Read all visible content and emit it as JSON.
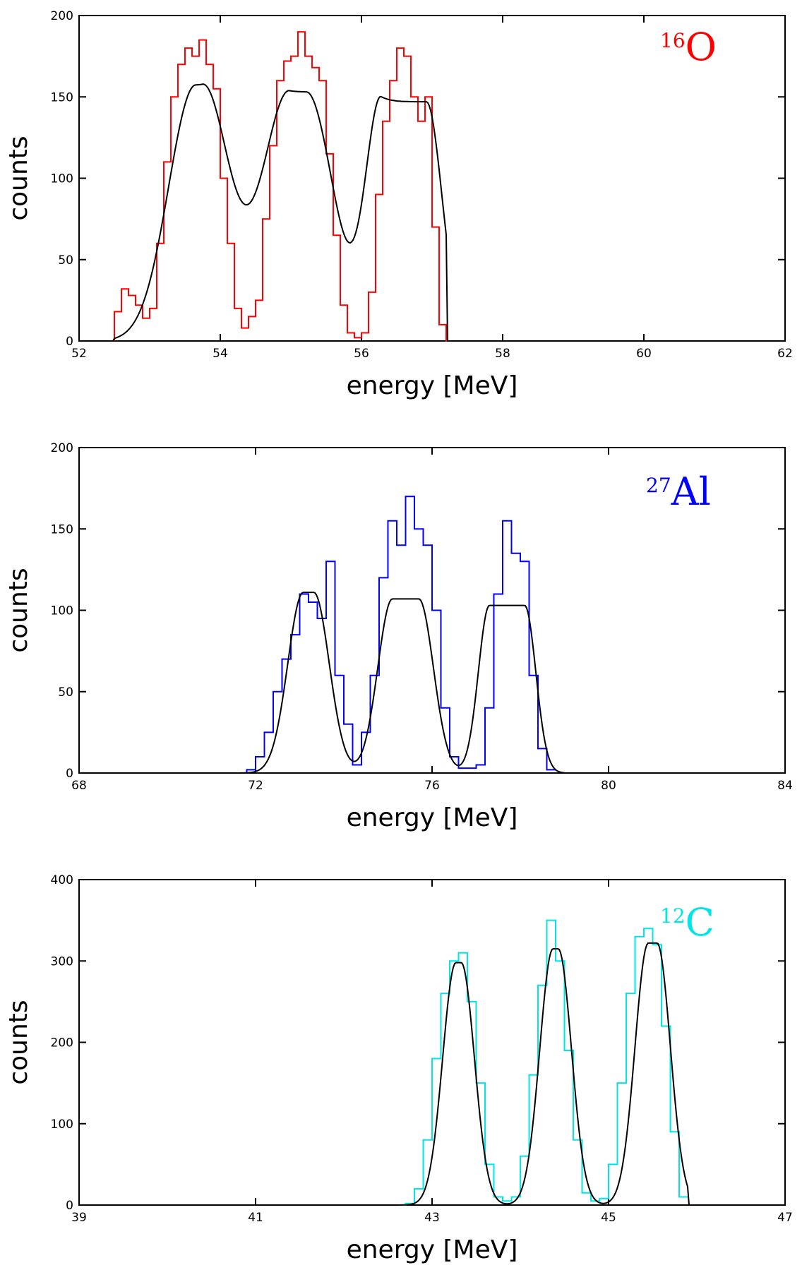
{
  "chart_data": [
    {
      "type": "line",
      "xlabel": "energy [MeV]",
      "ylabel": "counts",
      "xlim": [
        52,
        62
      ],
      "ylim": [
        0,
        200
      ],
      "xticks": [
        52,
        54,
        56,
        58,
        60,
        62
      ],
      "yticks": [
        0,
        50,
        100,
        150,
        200
      ],
      "annotation": {
        "mass_number": "16",
        "element": "O",
        "color": "#ff0000"
      },
      "data_color": "#ff0000",
      "fit_color": "#000000",
      "fit": {
        "floor_start": 52.5,
        "floor_end": 57.2,
        "peaks": [
          {
            "center": 53.7,
            "height": 157,
            "sigma": 0.38,
            "half_flat": 0.05
          },
          {
            "center": 55.1,
            "height": 153,
            "sigma": 0.38,
            "half_flat": 0.12
          },
          {
            "center": 56.6,
            "height": 147,
            "sigma": 0.22,
            "half_flat": 0.32
          }
        ]
      },
      "series": [
        {
          "x": [
            52.5,
            52.6,
            52.7,
            52.8,
            52.9,
            53.0,
            53.1,
            53.2,
            53.3,
            53.4,
            53.5,
            53.6,
            53.7,
            53.8,
            53.9,
            54.0,
            54.1,
            54.2,
            54.3,
            54.4,
            54.5,
            54.6,
            54.7,
            54.8,
            54.9,
            55.0,
            55.1,
            55.2,
            55.3,
            55.4,
            55.5,
            55.6,
            55.7,
            55.8,
            55.9,
            56.0,
            56.1,
            56.2,
            56.3,
            56.4,
            56.5,
            56.6,
            56.7,
            56.8,
            56.9,
            57.0,
            57.1,
            57.2
          ],
          "values": [
            18,
            32,
            28,
            22,
            14,
            20,
            60,
            110,
            150,
            170,
            180,
            175,
            185,
            170,
            155,
            100,
            60,
            20,
            8,
            15,
            25,
            75,
            120,
            160,
            172,
            175,
            190,
            175,
            168,
            160,
            115,
            65,
            22,
            5,
            2,
            5,
            30,
            90,
            135,
            160,
            180,
            175,
            150,
            135,
            150,
            70,
            10,
            0
          ]
        }
      ]
    },
    {
      "type": "line",
      "xlabel": "energy [MeV]",
      "ylabel": "counts",
      "xlim": [
        68,
        84
      ],
      "ylim": [
        0,
        200
      ],
      "xticks": [
        68,
        72,
        76,
        80,
        84
      ],
      "yticks": [
        0,
        50,
        100,
        150,
        200
      ],
      "annotation": {
        "mass_number": "27",
        "element": "Al",
        "color": "#0000ff"
      },
      "data_color": "#0000ff",
      "fit_color": "#000000",
      "fit": {
        "floor_start": 71.5,
        "floor_end": 79.0,
        "peaks": [
          {
            "center": 73.2,
            "height": 111,
            "sigma": 0.35,
            "half_flat": 0.12
          },
          {
            "center": 75.4,
            "height": 107,
            "sigma": 0.33,
            "half_flat": 0.3
          },
          {
            "center": 77.7,
            "height": 103,
            "sigma": 0.25,
            "half_flat": 0.4
          }
        ]
      },
      "series": [
        {
          "x": [
            71.8,
            72.0,
            72.2,
            72.4,
            72.6,
            72.8,
            73.0,
            73.2,
            73.4,
            73.6,
            73.8,
            74.0,
            74.2,
            74.4,
            74.6,
            74.8,
            75.0,
            75.2,
            75.4,
            75.6,
            75.8,
            76.0,
            76.2,
            76.4,
            76.6,
            76.8,
            77.0,
            77.2,
            77.4,
            77.6,
            77.8,
            78.0,
            78.2,
            78.4,
            78.6
          ],
          "values": [
            2,
            10,
            25,
            50,
            70,
            85,
            110,
            105,
            95,
            130,
            60,
            30,
            5,
            25,
            60,
            120,
            155,
            140,
            170,
            150,
            140,
            100,
            40,
            10,
            3,
            3,
            5,
            40,
            110,
            155,
            135,
            130,
            60,
            15,
            2
          ]
        }
      ]
    },
    {
      "type": "line",
      "xlabel": "energy [MeV]",
      "ylabel": "counts",
      "xlim": [
        39,
        47
      ],
      "ylim": [
        0,
        400
      ],
      "xticks": [
        39,
        41,
        43,
        45,
        47
      ],
      "xtick_labels": [
        "39",
        "41",
        "43",
        "45",
        "47"
      ],
      "yticks": [
        0,
        100,
        200,
        300,
        400
      ],
      "ytick_labels": [
        "0",
        "100",
        "200",
        "300",
        "400"
      ],
      "annotation": {
        "mass_number": "12",
        "element": "C",
        "color": "#00e5e5"
      },
      "data_color": "#00e5e5",
      "fit_color": "#000000",
      "fit": {
        "floor_start": 42.5,
        "floor_end": 45.9,
        "peaks": [
          {
            "center": 43.3,
            "height": 298,
            "sigma": 0.15,
            "half_flat": 0.03
          },
          {
            "center": 44.4,
            "height": 315,
            "sigma": 0.15,
            "half_flat": 0.03
          },
          {
            "center": 45.5,
            "height": 322,
            "sigma": 0.15,
            "half_flat": 0.05
          }
        ]
      },
      "series": [
        {
          "x": [
            42.6,
            42.7,
            42.8,
            42.9,
            43.0,
            43.1,
            43.2,
            43.3,
            43.4,
            43.5,
            43.6,
            43.7,
            43.8,
            43.9,
            44.0,
            44.1,
            44.2,
            44.3,
            44.4,
            44.5,
            44.6,
            44.7,
            44.8,
            44.9,
            45.0,
            45.1,
            45.2,
            45.3,
            45.4,
            45.5,
            45.6,
            45.7,
            45.8
          ],
          "values": [
            0,
            2,
            20,
            80,
            180,
            260,
            300,
            310,
            250,
            150,
            50,
            10,
            5,
            10,
            60,
            160,
            270,
            350,
            300,
            190,
            80,
            15,
            5,
            8,
            50,
            150,
            260,
            330,
            340,
            320,
            220,
            90,
            10
          ]
        }
      ]
    }
  ]
}
